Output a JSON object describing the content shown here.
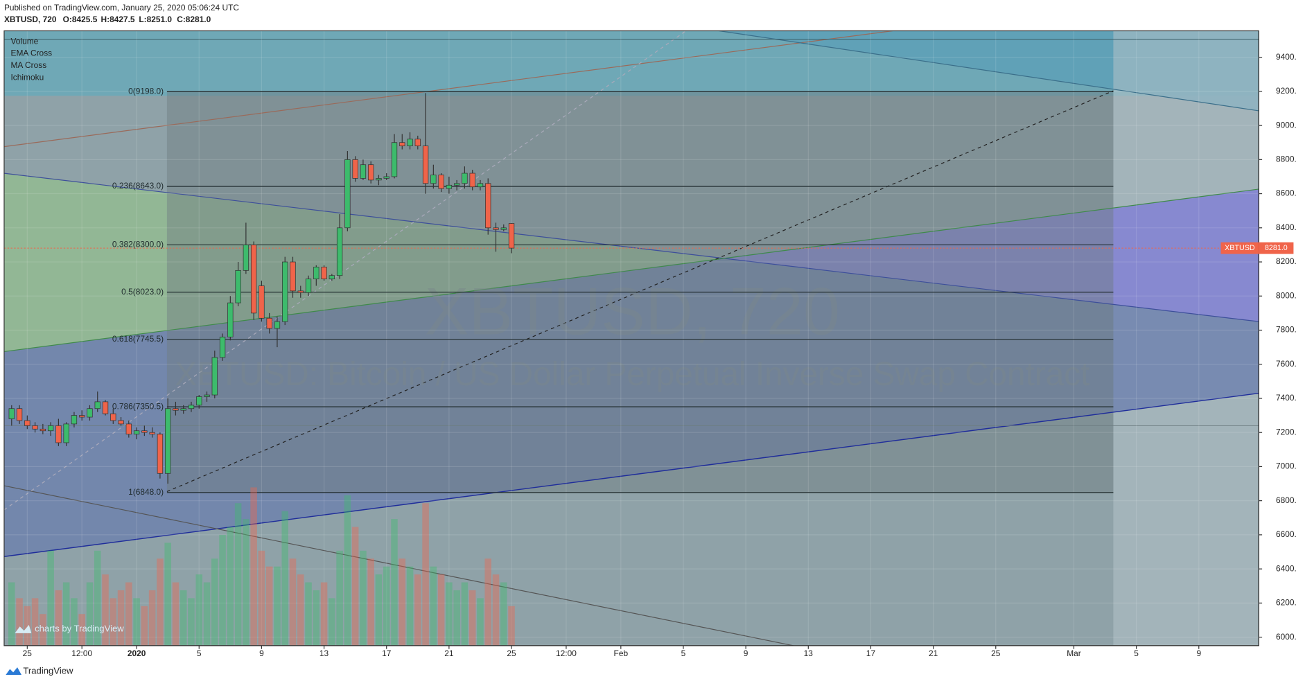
{
  "chart_data": {
    "type": "candlestick",
    "published": "Published on TradingView.com, January 25, 2020 05:06:24 UTC",
    "symbol": "XBTUSD, 720",
    "ohlc_labels": [
      "O:8425.5",
      "H:8427.5",
      "L:8251.0",
      "C:8281.0"
    ],
    "indicators": [
      "Volume",
      "EMA Cross",
      "MA Cross",
      "Ichimoku"
    ],
    "watermark": "XBTUSD, 720",
    "watermark_subtitle": "XBTUSD: Bitcoin / US Dollar Perpetual Inverse Swap Contract",
    "branding": "TradingView",
    "branding_small": "charts by TradingView",
    "price_tag": {
      "symbol": "XBTUSD",
      "value": 8281,
      "label": "8281.0"
    },
    "x": [
      -1,
      -0.5,
      0,
      0.5,
      1,
      1.5,
      2,
      2.5,
      3,
      3.5,
      4,
      4.5,
      5,
      5.5,
      6,
      6.5,
      7,
      7.5,
      8,
      8.5,
      9,
      9.5,
      10,
      10.5,
      11,
      11.5,
      12,
      12.5,
      13,
      13.5,
      14,
      14.5,
      15,
      15.5,
      16,
      16.5,
      17,
      17.5,
      18,
      18.5,
      19,
      19.5,
      20,
      20.5,
      21,
      21.5,
      22,
      22.5,
      23,
      23.5,
      24,
      24.5,
      25,
      25.5,
      26,
      26.5,
      27,
      27.5,
      28,
      28.5,
      29,
      29.5,
      30,
      30.5,
      31
    ],
    "open": [
      7280,
      7340,
      7270,
      7240,
      7220,
      7210,
      7240,
      7140,
      7250,
      7300,
      7290,
      7340,
      7380,
      7310,
      7270,
      7250,
      7190,
      7210,
      7200,
      7190,
      6960,
      7340,
      7330,
      7340,
      7360,
      7410,
      7420,
      7640,
      7760,
      7960,
      8150,
      8300,
      8060,
      7870,
      7810,
      7850,
      8200,
      8030,
      8020,
      8100,
      8170,
      8100,
      8120,
      8400,
      8800,
      8690,
      8770,
      8680,
      8690,
      8700,
      8900,
      8880,
      8920,
      8880,
      8660,
      8710,
      8630,
      8650,
      8660,
      8720,
      8640,
      8660,
      8400,
      8390,
      8425.5
    ],
    "high": [
      7360,
      7360,
      7300,
      7260,
      7250,
      7260,
      7280,
      7260,
      7320,
      7330,
      7360,
      7440,
      7390,
      7340,
      7290,
      7270,
      7230,
      7240,
      7230,
      7200,
      7400,
      7380,
      7360,
      7380,
      7420,
      7440,
      7680,
      7780,
      8000,
      8200,
      8430,
      8320,
      8090,
      7900,
      7880,
      8230,
      8230,
      8060,
      8120,
      8180,
      8180,
      8130,
      8480,
      8850,
      8820,
      8800,
      8790,
      8710,
      8720,
      8950,
      8950,
      8960,
      8940,
      9190,
      8770,
      8720,
      8700,
      8680,
      8760,
      8740,
      8680,
      8690,
      8430,
      8420,
      8427.5
    ],
    "low": [
      7240,
      7250,
      7220,
      7200,
      7190,
      7180,
      7120,
      7120,
      7230,
      7270,
      7270,
      7320,
      7300,
      7250,
      7240,
      7170,
      7160,
      7180,
      7170,
      6930,
      6900,
      7300,
      7310,
      7320,
      7340,
      7380,
      7400,
      7620,
      7740,
      7940,
      8130,
      7860,
      7850,
      7780,
      7700,
      7830,
      7990,
      7990,
      8000,
      8060,
      8090,
      8090,
      8100,
      8380,
      8670,
      8680,
      8660,
      8650,
      8680,
      8690,
      8860,
      8860,
      8860,
      8600,
      8630,
      8610,
      8600,
      8620,
      8630,
      8620,
      8620,
      8360,
      8260,
      8380,
      8251
    ],
    "close": [
      7340,
      7270,
      7240,
      7220,
      7210,
      7240,
      7140,
      7250,
      7300,
      7290,
      7340,
      7380,
      7310,
      7270,
      7250,
      7190,
      7210,
      7200,
      7190,
      6960,
      7340,
      7330,
      7340,
      7360,
      7410,
      7420,
      7640,
      7760,
      7960,
      8150,
      8300,
      7900,
      7870,
      7810,
      7850,
      8200,
      8030,
      8020,
      8100,
      8170,
      8100,
      8120,
      8400,
      8800,
      8690,
      8770,
      8680,
      8690,
      8700,
      8900,
      8880,
      8920,
      8880,
      8660,
      8710,
      8630,
      8650,
      8660,
      8720,
      8640,
      8660,
      8400,
      8390,
      8400,
      8281
    ],
    "volume": [
      40,
      30,
      25,
      30,
      20,
      60,
      35,
      40,
      30,
      20,
      40,
      60,
      45,
      30,
      35,
      40,
      30,
      25,
      35,
      55,
      65,
      40,
      35,
      30,
      45,
      40,
      55,
      70,
      75,
      90,
      80,
      100,
      60,
      50,
      50,
      85,
      55,
      45,
      40,
      35,
      40,
      30,
      60,
      95,
      75,
      60,
      55,
      45,
      50,
      80,
      55,
      50,
      45,
      90,
      50,
      45,
      40,
      35,
      40,
      35,
      30,
      55,
      45,
      40,
      25
    ],
    "up_color": "#3dbb6c",
    "down_color": "#f0644a",
    "fib_levels": [
      {
        "value": 9198,
        "label": "0(9198.0)"
      },
      {
        "value": 8643,
        "label": "0.236(8643.0)"
      },
      {
        "value": 8300,
        "label": "0.382(8300.0)"
      },
      {
        "value": 8023,
        "label": "0.5(8023.0)"
      },
      {
        "value": 7745.5,
        "label": "0.618(7745.5)"
      },
      {
        "value": 7350.5,
        "label": "0.786(7350.5)"
      },
      {
        "value": 6848,
        "label": "1(6848.0)"
      }
    ],
    "xlim": [
      -1.48,
      78.84
    ],
    "ylim": [
      5950,
      9555
    ],
    "xticks": [
      {
        "value": 0,
        "label": "25"
      },
      {
        "value": 3.5,
        "label": "12:00"
      },
      {
        "value": 7,
        "label": "2020"
      },
      {
        "value": 11,
        "label": "5"
      },
      {
        "value": 15,
        "label": "9"
      },
      {
        "value": 19,
        "label": "13"
      },
      {
        "value": 23,
        "label": "17"
      },
      {
        "value": 27,
        "label": "21"
      },
      {
        "value": 31,
        "label": "25"
      },
      {
        "value": 34.5,
        "label": "12:00"
      },
      {
        "value": 38,
        "label": "Feb"
      },
      {
        "value": 42,
        "label": "5"
      },
      {
        "value": 46,
        "label": "9"
      },
      {
        "value": 50,
        "label": "13"
      },
      {
        "value": 54,
        "label": "17"
      },
      {
        "value": 58,
        "label": "21"
      },
      {
        "value": 62,
        "label": "25"
      },
      {
        "value": 67,
        "label": "Mar"
      },
      {
        "value": 71,
        "label": "5"
      },
      {
        "value": 75,
        "label": "9"
      }
    ],
    "yticks": [
      {
        "value": 6000,
        "label": "6000.0"
      },
      {
        "value": 6200,
        "label": "6200.0"
      },
      {
        "value": 6400,
        "label": "6400.0"
      },
      {
        "value": 6600,
        "label": "6600.0"
      },
      {
        "value": 6800,
        "label": "6800.0"
      },
      {
        "value": 7000,
        "label": "7000.0"
      },
      {
        "value": 7200,
        "label": "7200.0"
      },
      {
        "value": 7400,
        "label": "7400.0"
      },
      {
        "value": 7600,
        "label": "7600.0"
      },
      {
        "value": 7800,
        "label": "7800.0"
      },
      {
        "value": 8000,
        "label": "8000.0"
      },
      {
        "value": 8200,
        "label": "8200.0"
      },
      {
        "value": 8400,
        "label": "8400.0"
      },
      {
        "value": 8600,
        "label": "8600.0"
      },
      {
        "value": 8800,
        "label": "8800.0"
      },
      {
        "value": 9000,
        "label": "9000.0"
      },
      {
        "value": 9200,
        "label": "9200.0"
      },
      {
        "value": 9400,
        "label": "9400.0"
      }
    ],
    "grid": true
  }
}
